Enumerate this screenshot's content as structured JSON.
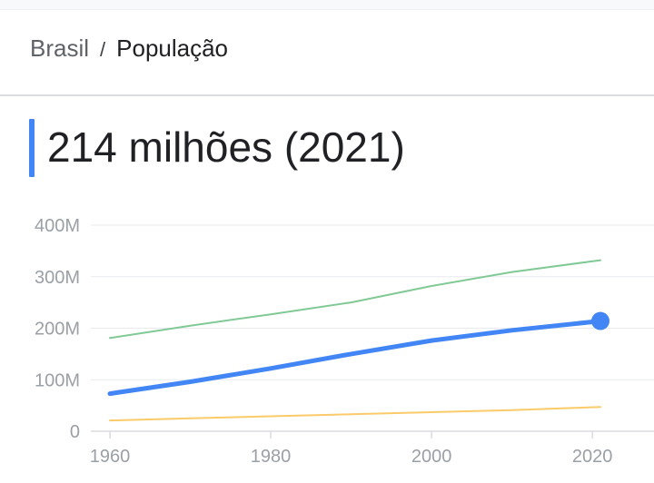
{
  "breadcrumb": {
    "root": "Brasil",
    "separator": "/",
    "current": "População"
  },
  "headline": "214 milhões (2021)",
  "colors": {
    "accent": "#4285f4",
    "green": "#81c995",
    "yellow": "#fbcb6a",
    "grid": "#e8eaed",
    "tick": "#9aa0a6"
  },
  "chart_data": {
    "type": "line",
    "title": "",
    "xlabel": "",
    "ylabel": "",
    "xlim": [
      1960,
      2021
    ],
    "ylim": [
      0,
      400
    ],
    "y_ticks": [
      0,
      100,
      200,
      300,
      400
    ],
    "y_tick_labels": [
      "0",
      "100M",
      "200M",
      "300M",
      "400M"
    ],
    "x_ticks": [
      1960,
      1980,
      2000,
      2020
    ],
    "x_tick_labels": [
      "1960",
      "1980",
      "2000",
      "2020"
    ],
    "grid": true,
    "series": [
      {
        "color": "#81c995",
        "width": 2,
        "highlight": false,
        "x": [
          1960,
          1970,
          1980,
          1990,
          2000,
          2010,
          2021
        ],
        "y": [
          181,
          205,
          227,
          250,
          282,
          309,
          332
        ]
      },
      {
        "color": "#4285f4",
        "width": 5,
        "highlight": true,
        "x": [
          1960,
          1970,
          1980,
          1990,
          2000,
          2010,
          2021
        ],
        "y": [
          73,
          96,
          122,
          150,
          176,
          196,
          214
        ]
      },
      {
        "color": "#fbcb6a",
        "width": 2,
        "highlight": false,
        "x": [
          1960,
          1970,
          1980,
          1990,
          2000,
          2010,
          2021
        ],
        "y": [
          21,
          25,
          29,
          33,
          37,
          41,
          47
        ]
      }
    ]
  }
}
